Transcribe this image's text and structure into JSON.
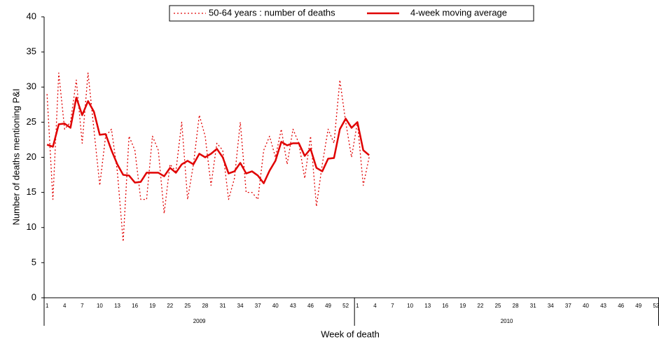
{
  "chart_data": {
    "type": "line",
    "x_label": "Week of death",
    "y_label": "Number of deaths mentioning P&I",
    "groups": [
      {
        "name": "2009",
        "categories": [
          "1",
          null,
          null,
          "4",
          null,
          null,
          "7",
          null,
          null,
          "10",
          null,
          null,
          "13",
          null,
          null,
          "16",
          null,
          null,
          "19",
          null,
          null,
          "22",
          null,
          null,
          "25",
          null,
          null,
          "28",
          null,
          null,
          "31",
          null,
          null,
          "34",
          null,
          null,
          "37",
          null,
          null,
          "40",
          null,
          null,
          "43",
          null,
          null,
          "46",
          null,
          null,
          "49",
          null,
          null,
          "52",
          null
        ]
      },
      {
        "name": "2010",
        "categories": [
          "1",
          null,
          null,
          "4",
          null,
          null,
          "7",
          null,
          null,
          "10",
          null,
          null,
          "13",
          null,
          null,
          "16",
          null,
          null,
          "19",
          null,
          null,
          "22",
          null,
          null,
          "25",
          null,
          null,
          "28",
          null,
          null,
          "31",
          null,
          null,
          "34",
          null,
          null,
          "37",
          null,
          null,
          "40",
          null,
          null,
          "43",
          null,
          null,
          "46",
          null,
          null,
          "49",
          null,
          null,
          "52"
        ]
      }
    ],
    "series": [
      {
        "name": "50-64 years : number of deaths",
        "color": "#e00000",
        "line_style": "dotted",
        "values": [
          29,
          14,
          32,
          24,
          25,
          31,
          22,
          32,
          24,
          16,
          23,
          24,
          18,
          8,
          23,
          21,
          14,
          14,
          23,
          21,
          12,
          19,
          18,
          25,
          14,
          19,
          26,
          23,
          16,
          22,
          21,
          14,
          17,
          25,
          15,
          15,
          14,
          21,
          23,
          20,
          24,
          19,
          24,
          22,
          17,
          23,
          13,
          19,
          24,
          22,
          31,
          25,
          20,
          25,
          16,
          20,
          null,
          null,
          null,
          null,
          null,
          null,
          null,
          null,
          null,
          null,
          null,
          null,
          null,
          null,
          null,
          null,
          null,
          null,
          null,
          null,
          null,
          null,
          null,
          null,
          null,
          null,
          null,
          null,
          null,
          null,
          null,
          null,
          null,
          null,
          null,
          null,
          null,
          null,
          null,
          null,
          null,
          null,
          null,
          null,
          null,
          null,
          null,
          null,
          null
        ]
      },
      {
        "name": "4-week moving average",
        "color": "#e00000",
        "line_style": "solid",
        "values": [
          21.8,
          21.5,
          24.7,
          24.8,
          24.2,
          28.5,
          26,
          28,
          26.5,
          23.2,
          23.3,
          21,
          19,
          17.5,
          17.4,
          16.4,
          16.5,
          17.8,
          17.8,
          17.8,
          17.3,
          18.5,
          17.8,
          19,
          19.5,
          19,
          20.5,
          20,
          20.5,
          21.2,
          20,
          17.7,
          18,
          19.2,
          17.7,
          18,
          17.4,
          16.3,
          18.1,
          19.5,
          22.2,
          21.7,
          22,
          22,
          20.2,
          21.2,
          18.5,
          18,
          19.8,
          19.9,
          24,
          25.5,
          24.2,
          25,
          21,
          20.3,
          null,
          null,
          null,
          null,
          null,
          null,
          null,
          null,
          null,
          null,
          null,
          null,
          null,
          null,
          null,
          null,
          null,
          null,
          null,
          null,
          null,
          null,
          null,
          null,
          null,
          null,
          null,
          null,
          null,
          null,
          null,
          null,
          null,
          null,
          null,
          null,
          null,
          null,
          null,
          null,
          null,
          null,
          null,
          null,
          null,
          null,
          null,
          null,
          null
        ]
      }
    ],
    "ylim": [
      0,
      40
    ],
    "yticks": [
      0,
      5,
      10,
      15,
      20,
      25,
      30,
      35,
      40
    ],
    "grid": false,
    "legend": "top"
  }
}
